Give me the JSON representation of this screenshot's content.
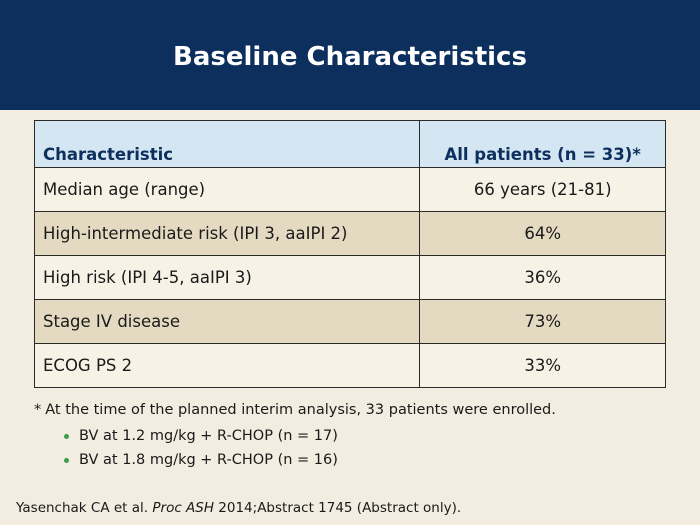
{
  "header": {
    "title": "Baseline Characteristics"
  },
  "table": {
    "columns": [
      "Characteristic",
      "All patients (n = 33)*"
    ],
    "rows": [
      [
        "Median age (range)",
        "66 years (21-81)"
      ],
      [
        "High-intermediate risk (IPI 3, aaIPI 2)",
        "64%"
      ],
      [
        "High risk (IPI 4-5, aaIPI 3)",
        "36%"
      ],
      [
        "Stage IV disease",
        "73%"
      ],
      [
        "ECOG PS 2",
        "33%"
      ]
    ]
  },
  "footnote": {
    "marker": "*",
    "text": "At the time of the planned interim analysis, 33 patients were enrolled.",
    "bullets": [
      "BV at 1.2 mg/kg + R-CHOP (n = 17)",
      "BV at 1.8 mg/kg + R-CHOP (n = 16)"
    ]
  },
  "citation": {
    "authors": "Yasenchak CA et al. ",
    "journal": "Proc ASH",
    "details": " 2014;Abstract 1745 (Abstract only)."
  },
  "colors": {
    "header_bg": "#0c2f5e",
    "table_header_bg": "#d4e6f1",
    "row_light": "#f6f2e6",
    "row_dark": "#e3dac1",
    "bullet": "#3f9a4e"
  }
}
